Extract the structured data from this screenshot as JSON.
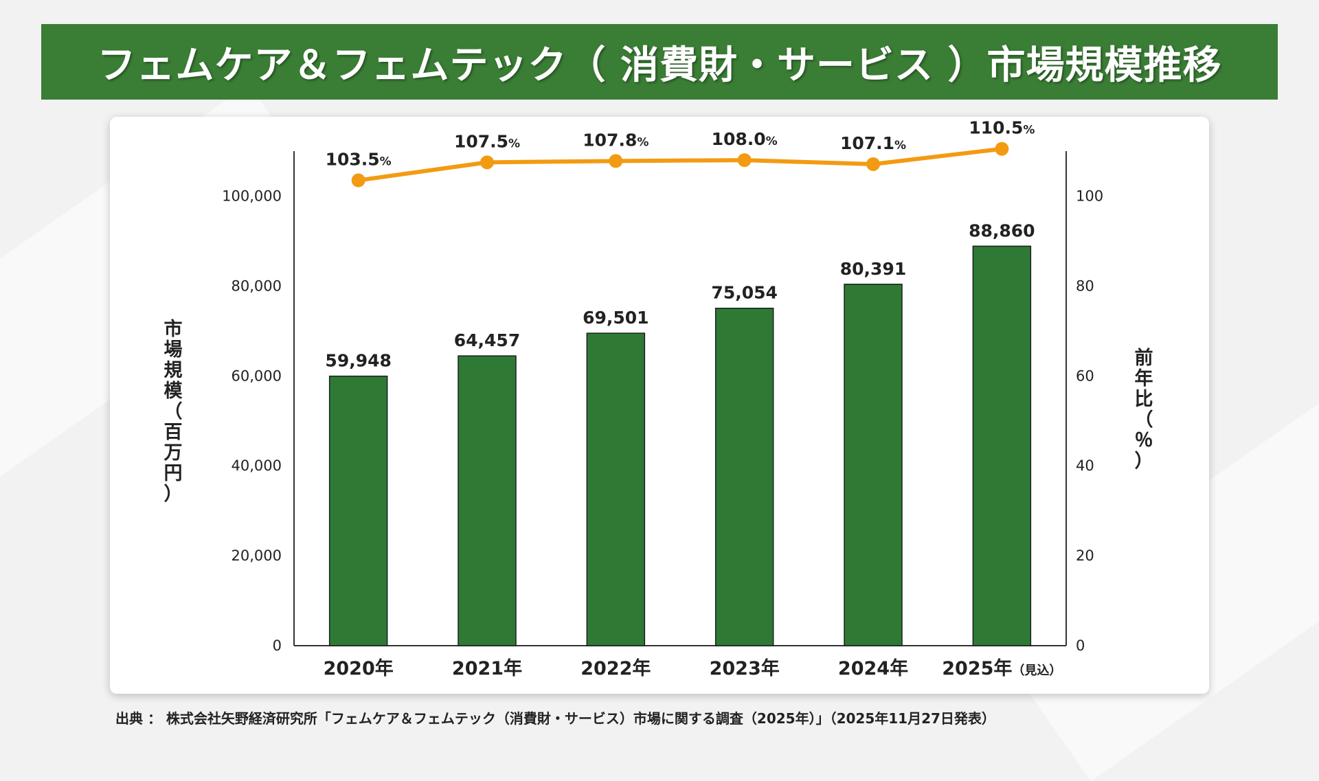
{
  "colors": {
    "bar": "#2e7a35",
    "line": "#f29b12",
    "title_bg": "#3a7d35",
    "axis": "#333333"
  },
  "title": "フェムケア＆フェムテック（ 消費財・サービス ）市場規模推移",
  "source": "出典 ： 株式会社矢野経済研究所「フェムケア＆フェムテック（消費財・サービス）市場に関する調査（2025年）」（2025年11月27日発表）",
  "chart_data": {
    "type": "bar",
    "categories": [
      "2020年",
      "2021年",
      "2022年",
      "2023年",
      "2024年",
      "2025年"
    ],
    "category_notes": [
      "",
      "",
      "",
      "",
      "",
      "（見込）"
    ],
    "series": [
      {
        "name": "市場規模",
        "type": "bar",
        "axis": "left",
        "values": [
          59948,
          64457,
          69501,
          75054,
          80391,
          88860
        ],
        "labels": [
          "59,948",
          "64,457",
          "69,501",
          "75,054",
          "80,391",
          "88,860"
        ]
      },
      {
        "name": "前年比",
        "type": "line",
        "axis": "right",
        "values": [
          103.5,
          107.5,
          107.8,
          108.0,
          107.1,
          110.5
        ],
        "labels": [
          "103.5",
          "107.5",
          "107.8",
          "108.0",
          "107.1",
          "110.5"
        ],
        "label_suffix": "%"
      }
    ],
    "ylabel": "市場規模（百万円）",
    "y2label": "前年比（％）",
    "ylim": [
      0,
      110000
    ],
    "y2lim": [
      0,
      110
    ],
    "yticks": [
      0,
      20000,
      40000,
      60000,
      80000,
      100000
    ],
    "ytick_labels": [
      "0",
      "20,000",
      "40,000",
      "60,000",
      "80,000",
      "100,000"
    ],
    "y2ticks": [
      0,
      20,
      40,
      60,
      80,
      100
    ],
    "y2tick_labels": [
      "0",
      "20",
      "40",
      "60",
      "80",
      "100"
    ],
    "grid": false,
    "legend": "none"
  }
}
